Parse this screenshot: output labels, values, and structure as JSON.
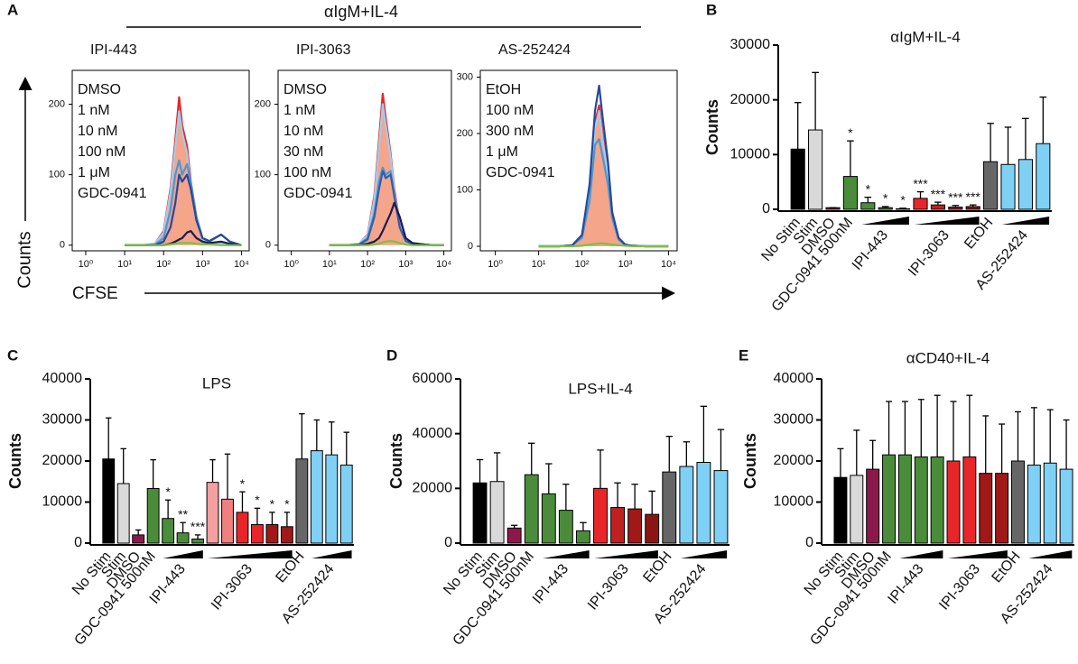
{
  "chart_data": [
    {
      "panel": "A",
      "suptitle": "αIgM+IL-4",
      "ylabel": "Counts",
      "xlabel": "CFSE",
      "type": "line",
      "title": "IPI-443",
      "log_x": true,
      "x": [
        10,
        30,
        60,
        100,
        150,
        200,
        250,
        300,
        400,
        500,
        700,
        1000,
        1500,
        3000,
        5000,
        10000
      ],
      "xlim": [
        0.45,
        15800
      ],
      "xticks": [
        {
          "value": 1,
          "label": "10⁰"
        },
        {
          "value": 10,
          "label": "10¹"
        },
        {
          "value": 100,
          "label": "10²"
        },
        {
          "value": 1000,
          "label": "10³"
        },
        {
          "value": 10000,
          "label": "10⁴"
        }
      ],
      "ylim": [
        -8,
        248
      ],
      "yticks": [
        0,
        100,
        200
      ],
      "series": [
        {
          "name": "DMSO",
          "color": "#e8262a",
          "fill": "#f4a58a",
          "values": [
            0,
            0,
            2,
            20,
            80,
            150,
            210,
            170,
            140,
            90,
            40,
            10,
            3,
            2,
            1,
            0
          ]
        },
        {
          "name": "1 nM",
          "color": "#9fcdee",
          "values": [
            0,
            0,
            2,
            18,
            75,
            140,
            190,
            160,
            130,
            80,
            35,
            8,
            3,
            2,
            1,
            0
          ]
        },
        {
          "name": "10 nM",
          "color": "#4a98d4",
          "values": [
            0,
            0,
            1,
            10,
            50,
            100,
            120,
            100,
            115,
            90,
            40,
            10,
            5,
            15,
            5,
            0
          ]
        },
        {
          "name": "100 nM",
          "color": "#27479c",
          "values": [
            0,
            0,
            0,
            5,
            25,
            60,
            100,
            90,
            100,
            80,
            35,
            10,
            6,
            15,
            5,
            0
          ]
        },
        {
          "name": "1 μM",
          "color": "#1b1b4d",
          "values": [
            0,
            0,
            0,
            0,
            2,
            5,
            8,
            10,
            18,
            20,
            10,
            5,
            3,
            5,
            2,
            0
          ]
        },
        {
          "name": "GDC-0941",
          "color": "#7cc242",
          "values": [
            0,
            0,
            0,
            0,
            1,
            2,
            3,
            3,
            3,
            3,
            2,
            1,
            1,
            0,
            0,
            0
          ]
        }
      ]
    },
    {
      "type": "line",
      "title": "IPI-3063",
      "log_x": true,
      "x": [
        10,
        30,
        60,
        100,
        150,
        200,
        250,
        300,
        400,
        500,
        700,
        1000,
        1500,
        3000,
        5000,
        10000
      ],
      "xlim": [
        0.45,
        15800
      ],
      "xticks": [
        {
          "value": 1,
          "label": "10⁰"
        },
        {
          "value": 10,
          "label": "10¹"
        },
        {
          "value": 100,
          "label": "10²"
        },
        {
          "value": 1000,
          "label": "10³"
        },
        {
          "value": 10000,
          "label": "10⁴"
        }
      ],
      "ylim": [
        -8,
        248
      ],
      "yticks": [
        0,
        100,
        200
      ],
      "series": [
        {
          "name": "DMSO",
          "color": "#e8262a",
          "fill": "#f4a58a",
          "values": [
            0,
            0,
            2,
            15,
            70,
            150,
            215,
            180,
            130,
            80,
            30,
            8,
            2,
            1,
            0,
            0
          ]
        },
        {
          "name": "1 nM",
          "color": "#9fcdee",
          "values": [
            0,
            0,
            2,
            14,
            65,
            140,
            200,
            170,
            125,
            75,
            28,
            7,
            2,
            1,
            0,
            0
          ]
        },
        {
          "name": "10 nM",
          "color": "#4a98d4",
          "values": [
            0,
            0,
            1,
            10,
            45,
            90,
            110,
            100,
            105,
            70,
            25,
            6,
            2,
            1,
            0,
            0
          ]
        },
        {
          "name": "30 nM",
          "color": "#2f5fae",
          "values": [
            0,
            0,
            1,
            8,
            40,
            80,
            105,
            95,
            100,
            70,
            25,
            6,
            2,
            1,
            0,
            0
          ]
        },
        {
          "name": "100 nM",
          "color": "#1b1b4d",
          "values": [
            0,
            0,
            0,
            2,
            5,
            10,
            20,
            30,
            45,
            60,
            40,
            10,
            3,
            1,
            0,
            0
          ]
        },
        {
          "name": "GDC-0941",
          "color": "#7cc242",
          "values": [
            0,
            0,
            0,
            0,
            1,
            2,
            4,
            5,
            6,
            5,
            3,
            1,
            0,
            0,
            0,
            0
          ]
        }
      ]
    },
    {
      "type": "line",
      "title": "AS-252424",
      "log_x": true,
      "x": [
        10,
        30,
        60,
        100,
        150,
        200,
        250,
        300,
        400,
        500,
        700,
        1000,
        1500,
        3000,
        5000,
        10000
      ],
      "xlim": [
        0.45,
        15800
      ],
      "xticks": [
        {
          "value": 1,
          "label": "10⁰"
        },
        {
          "value": 10,
          "label": "10¹"
        },
        {
          "value": 100,
          "label": "10²"
        },
        {
          "value": 1000,
          "label": "10³"
        },
        {
          "value": 10000,
          "label": "10⁴"
        }
      ],
      "ylim": [
        -8,
        312
      ],
      "yticks": [
        0,
        100,
        200,
        300
      ],
      "series": [
        {
          "name": "EtOH",
          "color": "#e8262a",
          "fill": "#f4a58a",
          "values": [
            0,
            0,
            2,
            20,
            100,
            220,
            250,
            200,
            130,
            60,
            15,
            3,
            1,
            0,
            0,
            0
          ]
        },
        {
          "name": "100 nM",
          "color": "#9fcdee",
          "values": [
            0,
            0,
            2,
            18,
            95,
            210,
            240,
            190,
            125,
            55,
            14,
            3,
            1,
            0,
            0,
            0
          ]
        },
        {
          "name": "300 nM",
          "color": "#4a98d4",
          "values": [
            0,
            0,
            2,
            15,
            80,
            180,
            190,
            160,
            110,
            50,
            12,
            2,
            1,
            0,
            0,
            0
          ]
        },
        {
          "name": "1 μM",
          "color": "#27479c",
          "values": [
            0,
            0,
            2,
            20,
            110,
            240,
            285,
            230,
            150,
            60,
            15,
            3,
            1,
            0,
            0,
            0
          ]
        },
        {
          "name": "GDC-0941",
          "color": "#7cc242",
          "values": [
            0,
            0,
            0,
            1,
            3,
            4,
            5,
            5,
            4,
            3,
            2,
            1,
            0,
            0,
            0,
            0
          ]
        }
      ]
    },
    {
      "panel": "B",
      "type": "bar",
      "title": "αIgM+IL-4",
      "ylabel": "Counts",
      "categories": [
        "No Stim",
        "Stim",
        "DMSO",
        "GDC-0941 500nM",
        "IPI-443",
        null,
        null,
        "IPI-3063",
        null,
        null,
        null,
        "EtOH",
        "AS-252424",
        null,
        null
      ],
      "values": [
        11000,
        14500,
        300,
        6000,
        1200,
        300,
        100,
        2000,
        800,
        400,
        500,
        8700,
        8200,
        9100,
        12000
      ],
      "errors": [
        8500,
        10500,
        0,
        6500,
        1000,
        200,
        100,
        1200,
        500,
        300,
        300,
        7000,
        6800,
        7500,
        8500
      ],
      "colors": [
        "#000000",
        "#d9d9d9",
        "#8b1a4a",
        "#4a8c3a",
        "#4a8c3a",
        "#4a8c3a",
        "#4a8c3a",
        "#e8262a",
        "#c02020",
        "#a01818",
        "#8b1515",
        "#666666",
        "#7fd0f5",
        "#7fd0f5",
        "#7fd0f5"
      ],
      "stars": [
        null,
        null,
        null,
        "*",
        "*",
        "*",
        "*",
        "***",
        "***",
        "***",
        "***",
        null,
        null,
        null,
        null
      ],
      "star_color": "#e8262a",
      "ylim": [
        0,
        30000
      ],
      "yticks": [
        0,
        10000,
        20000,
        30000
      ]
    },
    {
      "panel": "C",
      "type": "bar",
      "title": "LPS",
      "ylabel": "Counts",
      "categories": [
        "No Stim",
        "Stim",
        "DMSO",
        "GDC-0941 500nM",
        "IPI-443",
        null,
        null,
        "IPI-3063",
        null,
        null,
        null,
        null,
        null,
        "EtOH",
        "AS-252424",
        null,
        null
      ],
      "values": [
        20500,
        14500,
        2000,
        13300,
        6000,
        2500,
        1000,
        14800,
        10700,
        7500,
        4500,
        4500,
        4000,
        20500,
        22500,
        21500,
        19000
      ],
      "errors": [
        10000,
        8500,
        1200,
        7000,
        4500,
        2500,
        1000,
        5500,
        11000,
        5000,
        4000,
        3000,
        3500,
        11000,
        7500,
        8000,
        8000
      ],
      "colors": [
        "#000000",
        "#d9d9d9",
        "#8b1a4a",
        "#4a8c3a",
        "#4a8c3a",
        "#4a8c3a",
        "#4a8c3a",
        "#f4a0a0",
        "#f08080",
        "#e8262a",
        "#e8262a",
        "#a01818",
        "#a01818",
        "#666666",
        "#7fd0f5",
        "#7fd0f5",
        "#7fd0f5"
      ],
      "stars": [
        null,
        null,
        null,
        null,
        "*",
        "**",
        "***",
        null,
        null,
        "*",
        "*",
        "*",
        "*",
        null,
        null,
        null,
        null
      ],
      "star_color": "#e8262a",
      "ylim": [
        0,
        40000
      ],
      "yticks": [
        0,
        10000,
        20000,
        30000,
        40000
      ]
    },
    {
      "panel": "D",
      "type": "bar",
      "title": "LPS+IL-4",
      "ylabel": "Counts",
      "categories": [
        "No Stim",
        "Stim",
        "DMSO",
        "GDC-0941 500nM",
        "IPI-443",
        null,
        null,
        "IPI-3063",
        null,
        null,
        null,
        "EtOH",
        "AS-252424",
        null,
        null
      ],
      "values": [
        22000,
        22500,
        5500,
        25000,
        18000,
        12000,
        4500,
        20000,
        13000,
        12500,
        10500,
        26000,
        28000,
        29500,
        26500
      ],
      "errors": [
        8500,
        10500,
        1000,
        11500,
        11000,
        9500,
        3000,
        14000,
        9000,
        9000,
        8500,
        13000,
        9000,
        20500,
        15000
      ],
      "colors": [
        "#000000",
        "#d9d9d9",
        "#8b1a4a",
        "#4a8c3a",
        "#4a8c3a",
        "#4a8c3a",
        "#4a8c3a",
        "#e8262a",
        "#c02020",
        "#a01818",
        "#8b1515",
        "#666666",
        "#7fd0f5",
        "#7fd0f5",
        "#7fd0f5"
      ],
      "ylim": [
        0,
        60000
      ],
      "yticks": [
        0,
        20000,
        40000,
        60000
      ]
    },
    {
      "panel": "E",
      "type": "bar",
      "title": "αCD40+IL-4",
      "ylabel": "Counts",
      "categories": [
        "No Stim",
        "Stim",
        "DMSO",
        "GDC-0941 500nM",
        "IPI-443",
        null,
        null,
        "IPI-3063",
        null,
        null,
        null,
        "EtOH",
        "AS-252424",
        null,
        null
      ],
      "values": [
        16000,
        16500,
        18000,
        21500,
        21500,
        21000,
        21000,
        20000,
        21000,
        17000,
        17000,
        20000,
        19000,
        19500,
        18000
      ],
      "errors": [
        7000,
        11000,
        7000,
        13000,
        13000,
        14000,
        15000,
        14500,
        15000,
        14000,
        12000,
        12000,
        14000,
        13000,
        12000
      ],
      "colors": [
        "#000000",
        "#d9d9d9",
        "#8b1a4a",
        "#4a8c3a",
        "#4a8c3a",
        "#4a8c3a",
        "#4a8c3a",
        "#e8262a",
        "#e8262a",
        "#a01818",
        "#a01818",
        "#666666",
        "#7fd0f5",
        "#7fd0f5",
        "#7fd0f5"
      ],
      "ylim": [
        0,
        40000
      ],
      "yticks": [
        0,
        10000,
        20000,
        30000,
        40000
      ]
    }
  ]
}
